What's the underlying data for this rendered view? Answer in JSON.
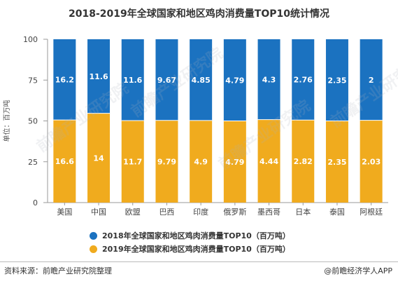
{
  "title": "2018-2019年全球国家和地区鸡肉消费量TOP10统计情况",
  "footer": {
    "source": "资料来源：前瞻产业研究院整理",
    "brand": "@前瞻经济学人APP"
  },
  "watermarks": [
    "前瞻产业研究院",
    "前瞻产业研究院",
    "前瞻产业研究院",
    "前瞻产业研究院"
  ],
  "colors": {
    "series_2018": "#1b72c0",
    "series_2019": "#f0ab1e",
    "axis": "#999999",
    "label": "#ffffff"
  },
  "chart_data": {
    "type": "bar",
    "stacked": "percent",
    "title": "2018-2019年全球国家和地区鸡肉消费量TOP10统计情况",
    "ylabel": "单位：百万吨",
    "xlabel": "",
    "ylim": [
      0,
      100
    ],
    "yticks": [
      "0",
      "25",
      "50",
      "75",
      "100"
    ],
    "categories": [
      "美国",
      "中国",
      "欧盟",
      "巴西",
      "印度",
      "俄罗斯",
      "墨西哥",
      "日本",
      "泰国",
      "阿根廷"
    ],
    "series": [
      {
        "name": "2019年全球国家和地区鸡肉消费量TOP10（百万吨）",
        "position": "bottom",
        "color": "#f0ab1e",
        "values": [
          16.6,
          14,
          11.7,
          9.79,
          4.9,
          4.79,
          4.44,
          2.82,
          2.35,
          2.03
        ],
        "labels": [
          "16.6",
          "14",
          "11.7",
          "9.79",
          "4.9",
          "4.79",
          "4.44",
          "2.82",
          "2.35",
          "2.03"
        ]
      },
      {
        "name": "2018年全球国家和地区鸡肉消费量TOP10（百万吨）",
        "position": "top",
        "color": "#1b72c0",
        "values": [
          16.2,
          11.6,
          11.6,
          9.67,
          4.85,
          4.79,
          4.3,
          2.76,
          2.35,
          2
        ],
        "labels": [
          "16.2",
          "11.6",
          "11.6",
          "9.67",
          "4.85",
          "4.79",
          "4.3",
          "2.76",
          "2.35",
          "2"
        ]
      }
    ],
    "legend_position": "bottom",
    "grid": false
  },
  "legend": [
    {
      "label": "2018年全球国家和地区鸡肉消费量TOP10（百万吨）",
      "color": "#1b72c0"
    },
    {
      "label": "2019年全球国家和地区鸡肉消费量TOP10（百万吨）",
      "color": "#f0ab1e"
    }
  ]
}
